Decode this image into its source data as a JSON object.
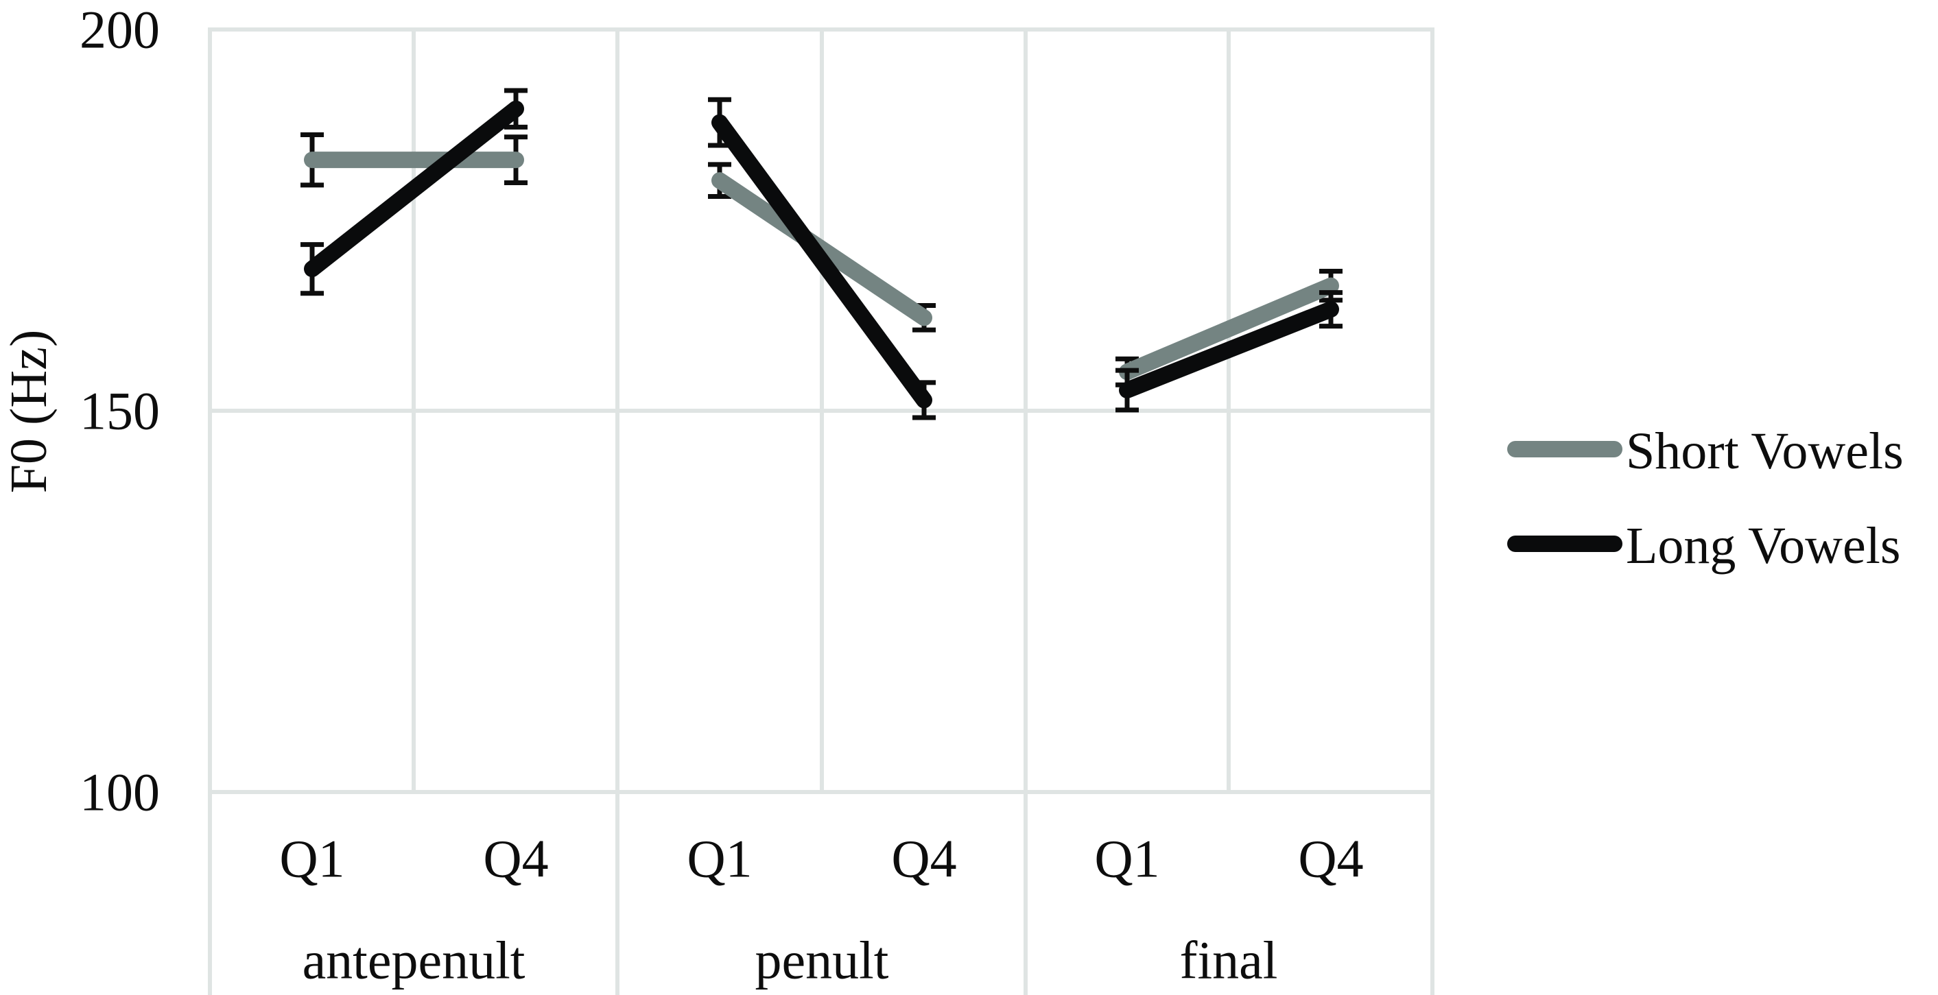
{
  "chart_data": {
    "type": "line",
    "title": "",
    "xlabel": "",
    "ylabel": "F0 (Hz)",
    "ylim": [
      100,
      200
    ],
    "yticks": [
      100,
      150,
      200
    ],
    "grid": true,
    "legend_position": "right",
    "groups": [
      {
        "label": "antepenult",
        "categories": [
          "Q1",
          "Q4"
        ]
      },
      {
        "label": "penult",
        "categories": [
          "Q1",
          "Q4"
        ]
      },
      {
        "label": "final",
        "categories": [
          "Q1",
          "Q4"
        ]
      }
    ],
    "categories": [
      "antepenult Q1",
      "antepenult Q4",
      "penult Q1",
      "penult Q4",
      "final Q1",
      "final Q4"
    ],
    "series": [
      {
        "name": "Short Vowels",
        "color": "#748482",
        "values": [
          182.9,
          182.9,
          180.2,
          162.2,
          155.1,
          166.4
        ],
        "error": [
          3.3,
          3.0,
          2.1,
          1.6,
          1.7,
          1.9
        ]
      },
      {
        "name": "Long Vowels",
        "color": "#0a0b0c",
        "values": [
          168.6,
          189.6,
          187.8,
          151.4,
          152.7,
          163.3
        ],
        "error": [
          3.2,
          2.4,
          3.0,
          2.3,
          2.6,
          2.2
        ]
      }
    ]
  },
  "axis": {
    "y_title": "F0 (Hz)",
    "y_tick_labels": [
      "200",
      "150",
      "100"
    ],
    "x_category_labels": [
      "Q1",
      "Q4",
      "Q1",
      "Q4",
      "Q1",
      "Q4"
    ],
    "x_group_labels": [
      "antepenult",
      "penult",
      "final"
    ]
  },
  "legend": {
    "items": [
      {
        "label": "Short Vowels",
        "color": "#748482"
      },
      {
        "label": "Long Vowels",
        "color": "#0a0b0c"
      }
    ]
  },
  "colors": {
    "grid": "#dfe4e3",
    "text": "#0d0d0d",
    "error_bar": "#0d0d0d"
  }
}
